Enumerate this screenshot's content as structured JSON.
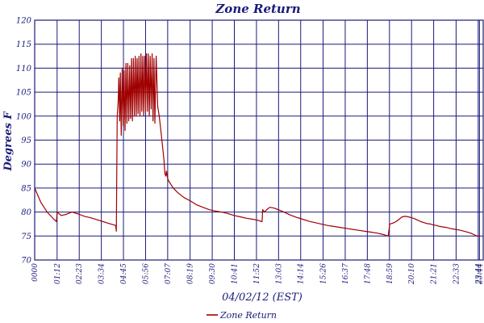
{
  "chart_data": {
    "type": "line",
    "title": "Zone Return",
    "xlabel": "04/02/12 (EST)",
    "ylabel": "Degrees F",
    "ylim": [
      70,
      120
    ],
    "yticks": [
      70,
      75,
      80,
      85,
      90,
      95,
      100,
      105,
      110,
      115,
      120
    ],
    "xlim": [
      0,
      1440
    ],
    "xticks": [
      {
        "label": "0000",
        "t": 0
      },
      {
        "label": "01:12",
        "t": 72
      },
      {
        "label": "02:23",
        "t": 143
      },
      {
        "label": "03:34",
        "t": 214
      },
      {
        "label": "04:45",
        "t": 285
      },
      {
        "label": "05:56",
        "t": 356
      },
      {
        "label": "07:07",
        "t": 427
      },
      {
        "label": "08:19",
        "t": 499
      },
      {
        "label": "09:30",
        "t": 570
      },
      {
        "label": "10:41",
        "t": 641
      },
      {
        "label": "11:52",
        "t": 712
      },
      {
        "label": "13:03",
        "t": 783
      },
      {
        "label": "14:14",
        "t": 854
      },
      {
        "label": "15:26",
        "t": 926
      },
      {
        "label": "16:37",
        "t": 997
      },
      {
        "label": "17:48",
        "t": 1068
      },
      {
        "label": "18:59",
        "t": 1139
      },
      {
        "label": "20:10",
        "t": 1210
      },
      {
        "label": "21:21",
        "t": 1281
      },
      {
        "label": "22:33",
        "t": 1353
      },
      {
        "label": "23:44",
        "t": 1424
      },
      {
        "label": "23:44",
        "t": 1428
      }
    ],
    "grid": true,
    "legend_position": "bottom",
    "line_color": "#a00000",
    "axis_color": "#1a1a7a",
    "grid_color": "#1a1a7a",
    "series": [
      {
        "name": "Zone Return",
        "points": [
          [
            0,
            85
          ],
          [
            20,
            82
          ],
          [
            40,
            80
          ],
          [
            60,
            78.6
          ],
          [
            70,
            78
          ],
          [
            72,
            80
          ],
          [
            85,
            79.3
          ],
          [
            100,
            79.5
          ],
          [
            120,
            80
          ],
          [
            140,
            79.6
          ],
          [
            160,
            79.1
          ],
          [
            180,
            78.8
          ],
          [
            200,
            78.4
          ],
          [
            220,
            78
          ],
          [
            240,
            77.6
          ],
          [
            260,
            77.2
          ],
          [
            262,
            76
          ],
          [
            265,
            100
          ],
          [
            268,
            103
          ],
          [
            270,
            108
          ],
          [
            273,
            99
          ],
          [
            275,
            109
          ],
          [
            278,
            96
          ],
          [
            281,
            110
          ],
          [
            284,
            98
          ],
          [
            287,
            109.5
          ],
          [
            290,
            97
          ],
          [
            293,
            111
          ],
          [
            296,
            98.5
          ],
          [
            299,
            111
          ],
          [
            302,
            99
          ],
          [
            305,
            110.5
          ],
          [
            308,
            99.5
          ],
          [
            311,
            112
          ],
          [
            314,
            99
          ],
          [
            317,
            112
          ],
          [
            320,
            100
          ],
          [
            323,
            112.5
          ],
          [
            326,
            100
          ],
          [
            329,
            112
          ],
          [
            332,
            100.5
          ],
          [
            335,
            112.5
          ],
          [
            338,
            100
          ],
          [
            341,
            113
          ],
          [
            344,
            101
          ],
          [
            347,
            112.5
          ],
          [
            350,
            100
          ],
          [
            353,
            112.5
          ],
          [
            356,
            101
          ],
          [
            359,
            113
          ],
          [
            362,
            101
          ],
          [
            365,
            113
          ],
          [
            368,
            100
          ],
          [
            371,
            112.5
          ],
          [
            374,
            101.5
          ],
          [
            377,
            113
          ],
          [
            380,
            99
          ],
          [
            383,
            112
          ],
          [
            386,
            98.5
          ],
          [
            390,
            112.5
          ],
          [
            395,
            102
          ],
          [
            400,
            100
          ],
          [
            405,
            97
          ],
          [
            410,
            94
          ],
          [
            415,
            91
          ],
          [
            418,
            88
          ],
          [
            421,
            87.5
          ],
          [
            423,
            88.5
          ],
          [
            427,
            87
          ],
          [
            430,
            86.5
          ],
          [
            445,
            85
          ],
          [
            460,
            84
          ],
          [
            480,
            83
          ],
          [
            500,
            82.3
          ],
          [
            520,
            81.5
          ],
          [
            540,
            81
          ],
          [
            560,
            80.5
          ],
          [
            580,
            80.2
          ],
          [
            600,
            80
          ],
          [
            620,
            79.7
          ],
          [
            640,
            79.3
          ],
          [
            660,
            79
          ],
          [
            680,
            78.7
          ],
          [
            700,
            78.5
          ],
          [
            715,
            78.3
          ],
          [
            730,
            78
          ],
          [
            732,
            80.5
          ],
          [
            738,
            80
          ],
          [
            745,
            80.5
          ],
          [
            755,
            81
          ],
          [
            770,
            80.8
          ],
          [
            785,
            80.4
          ],
          [
            800,
            80
          ],
          [
            820,
            79.4
          ],
          [
            840,
            78.9
          ],
          [
            860,
            78.5
          ],
          [
            880,
            78.1
          ],
          [
            900,
            77.8
          ],
          [
            920,
            77.5
          ],
          [
            940,
            77.2
          ],
          [
            960,
            77
          ],
          [
            980,
            76.8
          ],
          [
            1000,
            76.6
          ],
          [
            1020,
            76.4
          ],
          [
            1040,
            76.2
          ],
          [
            1060,
            76
          ],
          [
            1080,
            75.8
          ],
          [
            1100,
            75.6
          ],
          [
            1120,
            75.3
          ],
          [
            1135,
            75
          ],
          [
            1140,
            77.5
          ],
          [
            1150,
            77.7
          ],
          [
            1160,
            78
          ],
          [
            1170,
            78.5
          ],
          [
            1180,
            79
          ],
          [
            1190,
            79.1
          ],
          [
            1200,
            79
          ],
          [
            1210,
            78.8
          ],
          [
            1220,
            78.6
          ],
          [
            1230,
            78.3
          ],
          [
            1240,
            78
          ],
          [
            1250,
            77.8
          ],
          [
            1260,
            77.6
          ],
          [
            1270,
            77.5
          ],
          [
            1280,
            77.3
          ],
          [
            1290,
            77.2
          ],
          [
            1300,
            77
          ],
          [
            1320,
            76.8
          ],
          [
            1340,
            76.5
          ],
          [
            1360,
            76.3
          ],
          [
            1380,
            76
          ],
          [
            1400,
            75.6
          ],
          [
            1410,
            75.3
          ],
          [
            1420,
            75
          ],
          [
            1424,
            75
          ],
          [
            1428,
            75
          ],
          [
            1430,
            75
          ]
        ]
      }
    ]
  }
}
